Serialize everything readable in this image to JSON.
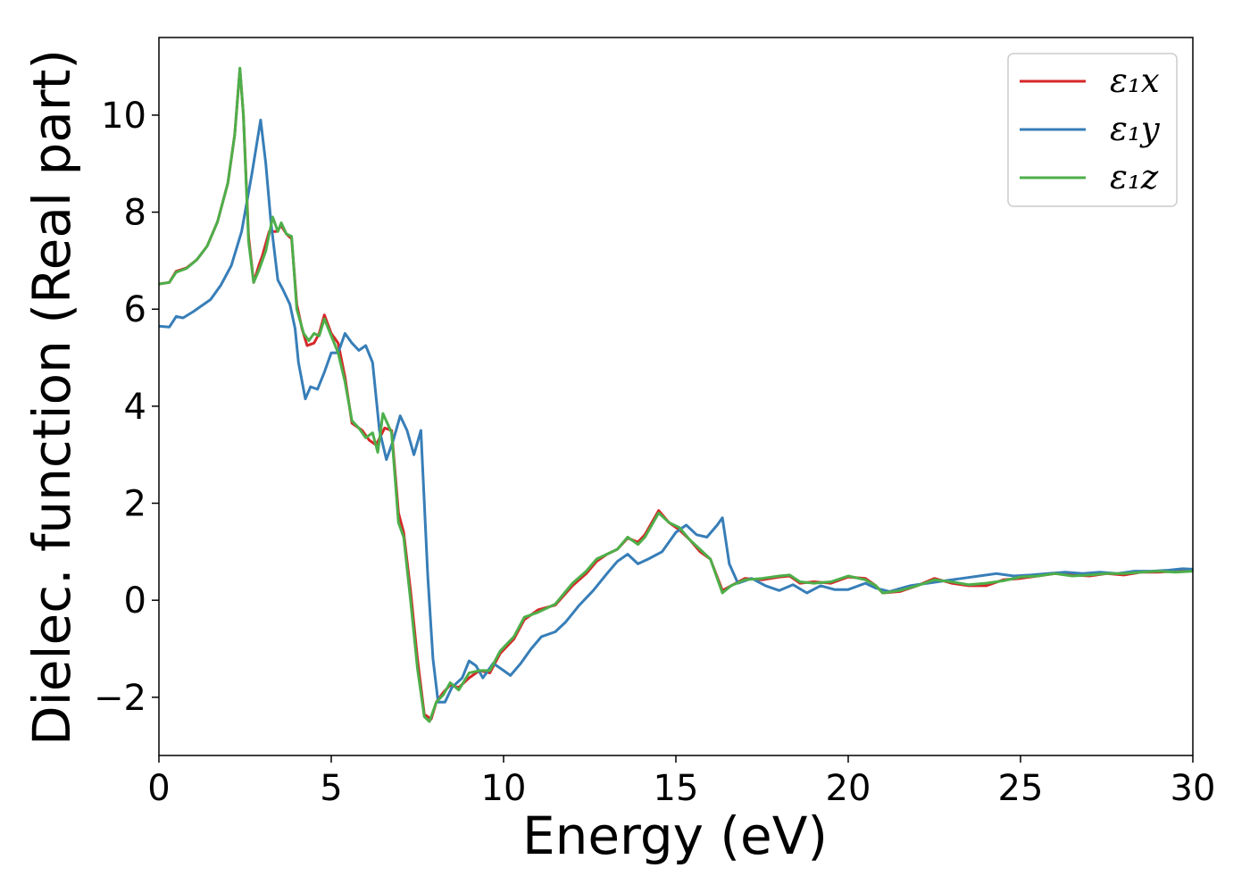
{
  "chart_data": {
    "type": "line",
    "title": "",
    "xlabel": "Energy (eV)",
    "ylabel": "Dielec. function (Real part)",
    "xlim": [
      0,
      30
    ],
    "ylim": [
      -3.2,
      11.6
    ],
    "xticks": [
      0,
      5,
      10,
      15,
      20,
      25,
      30
    ],
    "xtick_labels": [
      "0",
      "5",
      "10",
      "15",
      "20",
      "25",
      "30"
    ],
    "yticks": [
      -2,
      0,
      2,
      4,
      6,
      8,
      10
    ],
    "ytick_labels": [
      "−2",
      "0",
      "2",
      "4",
      "6",
      "8",
      "10"
    ],
    "grid": false,
    "legend_position": "top-right",
    "series": [
      {
        "name": "ε₁x",
        "color": "#d62728",
        "points": [
          [
            0,
            6.52
          ],
          [
            0.3,
            6.55
          ],
          [
            0.5,
            6.78
          ],
          [
            0.8,
            6.85
          ],
          [
            1.1,
            7.02
          ],
          [
            1.4,
            7.3
          ],
          [
            1.7,
            7.8
          ],
          [
            2.0,
            8.6
          ],
          [
            2.2,
            9.6
          ],
          [
            2.35,
            10.95
          ],
          [
            2.45,
            10.0
          ],
          [
            2.6,
            7.5
          ],
          [
            2.75,
            6.55
          ],
          [
            2.9,
            6.9
          ],
          [
            3.0,
            7.1
          ],
          [
            3.2,
            7.6
          ],
          [
            3.4,
            7.6
          ],
          [
            3.55,
            7.72
          ],
          [
            3.7,
            7.55
          ],
          [
            3.85,
            7.45
          ],
          [
            4.0,
            6.1
          ],
          [
            4.15,
            5.6
          ],
          [
            4.3,
            5.25
          ],
          [
            4.5,
            5.3
          ],
          [
            4.65,
            5.5
          ],
          [
            4.8,
            5.88
          ],
          [
            5.0,
            5.5
          ],
          [
            5.2,
            5.3
          ],
          [
            5.4,
            4.6
          ],
          [
            5.6,
            3.65
          ],
          [
            5.9,
            3.5
          ],
          [
            6.1,
            3.3
          ],
          [
            6.3,
            3.2
          ],
          [
            6.55,
            3.55
          ],
          [
            6.75,
            3.5
          ],
          [
            6.95,
            1.8
          ],
          [
            7.1,
            1.4
          ],
          [
            7.3,
            0.2
          ],
          [
            7.5,
            -1.2
          ],
          [
            7.7,
            -2.35
          ],
          [
            7.9,
            -2.45
          ],
          [
            8.05,
            -2.1
          ],
          [
            8.25,
            -1.9
          ],
          [
            8.45,
            -1.75
          ],
          [
            8.7,
            -1.8
          ],
          [
            9.0,
            -1.6
          ],
          [
            9.3,
            -1.45
          ],
          [
            9.6,
            -1.5
          ],
          [
            9.9,
            -1.1
          ],
          [
            10.3,
            -0.8
          ],
          [
            10.6,
            -0.4
          ],
          [
            11.0,
            -0.2
          ],
          [
            11.5,
            -0.1
          ],
          [
            12.0,
            0.3
          ],
          [
            12.4,
            0.55
          ],
          [
            12.7,
            0.8
          ],
          [
            13.0,
            0.95
          ],
          [
            13.3,
            1.05
          ],
          [
            13.6,
            1.28
          ],
          [
            13.9,
            1.2
          ],
          [
            14.1,
            1.35
          ],
          [
            14.5,
            1.85
          ],
          [
            14.8,
            1.6
          ],
          [
            15.1,
            1.45
          ],
          [
            15.4,
            1.25
          ],
          [
            15.7,
            1.0
          ],
          [
            16.0,
            0.85
          ],
          [
            16.35,
            0.2
          ],
          [
            16.6,
            0.3
          ],
          [
            17.0,
            0.45
          ],
          [
            17.5,
            0.42
          ],
          [
            18.0,
            0.48
          ],
          [
            18.3,
            0.5
          ],
          [
            18.6,
            0.35
          ],
          [
            19.0,
            0.38
          ],
          [
            19.5,
            0.35
          ],
          [
            20.0,
            0.48
          ],
          [
            20.5,
            0.45
          ],
          [
            20.8,
            0.3
          ],
          [
            21.0,
            0.15
          ],
          [
            21.5,
            0.18
          ],
          [
            22.0,
            0.3
          ],
          [
            22.5,
            0.45
          ],
          [
            23.0,
            0.35
          ],
          [
            23.5,
            0.3
          ],
          [
            24.0,
            0.3
          ],
          [
            24.5,
            0.42
          ],
          [
            25.0,
            0.45
          ],
          [
            25.5,
            0.5
          ],
          [
            26.0,
            0.55
          ],
          [
            26.5,
            0.52
          ],
          [
            27.0,
            0.5
          ],
          [
            27.5,
            0.55
          ],
          [
            28.0,
            0.52
          ],
          [
            28.5,
            0.58
          ],
          [
            29.0,
            0.58
          ],
          [
            29.5,
            0.6
          ],
          [
            30.0,
            0.62
          ]
        ]
      },
      {
        "name": "ε₁y",
        "color": "#377eb8",
        "points": [
          [
            0,
            5.65
          ],
          [
            0.3,
            5.63
          ],
          [
            0.5,
            5.85
          ],
          [
            0.7,
            5.82
          ],
          [
            1.0,
            5.95
          ],
          [
            1.5,
            6.2
          ],
          [
            1.8,
            6.5
          ],
          [
            2.1,
            6.9
          ],
          [
            2.4,
            7.6
          ],
          [
            2.7,
            8.8
          ],
          [
            2.95,
            9.9
          ],
          [
            3.1,
            9.0
          ],
          [
            3.25,
            7.8
          ],
          [
            3.45,
            6.6
          ],
          [
            3.6,
            6.4
          ],
          [
            3.8,
            6.1
          ],
          [
            3.95,
            5.6
          ],
          [
            4.05,
            4.9
          ],
          [
            4.25,
            4.15
          ],
          [
            4.4,
            4.4
          ],
          [
            4.6,
            4.35
          ],
          [
            4.8,
            4.7
          ],
          [
            5.0,
            5.1
          ],
          [
            5.2,
            5.1
          ],
          [
            5.4,
            5.5
          ],
          [
            5.6,
            5.3
          ],
          [
            5.8,
            5.15
          ],
          [
            6.0,
            5.25
          ],
          [
            6.2,
            4.9
          ],
          [
            6.4,
            3.5
          ],
          [
            6.6,
            2.9
          ],
          [
            6.8,
            3.3
          ],
          [
            7.0,
            3.8
          ],
          [
            7.2,
            3.5
          ],
          [
            7.4,
            3.0
          ],
          [
            7.6,
            3.5
          ],
          [
            7.8,
            0.5
          ],
          [
            7.95,
            -1.2
          ],
          [
            8.1,
            -2.1
          ],
          [
            8.3,
            -2.1
          ],
          [
            8.5,
            -1.8
          ],
          [
            8.8,
            -1.6
          ],
          [
            9.0,
            -1.25
          ],
          [
            9.2,
            -1.35
          ],
          [
            9.4,
            -1.6
          ],
          [
            9.7,
            -1.3
          ],
          [
            10.0,
            -1.45
          ],
          [
            10.2,
            -1.55
          ],
          [
            10.5,
            -1.3
          ],
          [
            10.8,
            -1.0
          ],
          [
            11.1,
            -0.75
          ],
          [
            11.5,
            -0.65
          ],
          [
            11.8,
            -0.45
          ],
          [
            12.2,
            -0.1
          ],
          [
            12.6,
            0.2
          ],
          [
            13.0,
            0.55
          ],
          [
            13.3,
            0.8
          ],
          [
            13.6,
            0.95
          ],
          [
            13.9,
            0.75
          ],
          [
            14.2,
            0.85
          ],
          [
            14.6,
            1.0
          ],
          [
            15.0,
            1.4
          ],
          [
            15.3,
            1.55
          ],
          [
            15.6,
            1.35
          ],
          [
            15.9,
            1.3
          ],
          [
            16.2,
            1.55
          ],
          [
            16.35,
            1.7
          ],
          [
            16.55,
            0.75
          ],
          [
            16.8,
            0.35
          ],
          [
            17.2,
            0.45
          ],
          [
            17.6,
            0.3
          ],
          [
            18.0,
            0.2
          ],
          [
            18.4,
            0.32
          ],
          [
            18.8,
            0.15
          ],
          [
            19.2,
            0.3
          ],
          [
            19.6,
            0.22
          ],
          [
            20.0,
            0.22
          ],
          [
            20.5,
            0.35
          ],
          [
            20.8,
            0.25
          ],
          [
            21.2,
            0.18
          ],
          [
            21.8,
            0.3
          ],
          [
            22.3,
            0.35
          ],
          [
            22.8,
            0.4
          ],
          [
            23.3,
            0.45
          ],
          [
            23.8,
            0.5
          ],
          [
            24.3,
            0.55
          ],
          [
            24.8,
            0.5
          ],
          [
            25.3,
            0.52
          ],
          [
            25.8,
            0.55
          ],
          [
            26.3,
            0.58
          ],
          [
            26.8,
            0.55
          ],
          [
            27.3,
            0.58
          ],
          [
            27.8,
            0.55
          ],
          [
            28.3,
            0.6
          ],
          [
            28.8,
            0.6
          ],
          [
            29.3,
            0.62
          ],
          [
            29.7,
            0.65
          ],
          [
            30.0,
            0.64
          ]
        ]
      },
      {
        "name": "ε₁z",
        "color": "#4daf4a",
        "points": [
          [
            0,
            6.52
          ],
          [
            0.3,
            6.55
          ],
          [
            0.5,
            6.76
          ],
          [
            0.8,
            6.84
          ],
          [
            1.1,
            7.02
          ],
          [
            1.4,
            7.3
          ],
          [
            1.7,
            7.8
          ],
          [
            2.0,
            8.6
          ],
          [
            2.2,
            9.6
          ],
          [
            2.35,
            10.97
          ],
          [
            2.45,
            10.0
          ],
          [
            2.6,
            7.4
          ],
          [
            2.75,
            6.55
          ],
          [
            2.9,
            6.8
          ],
          [
            3.1,
            7.2
          ],
          [
            3.3,
            7.9
          ],
          [
            3.45,
            7.6
          ],
          [
            3.55,
            7.78
          ],
          [
            3.7,
            7.55
          ],
          [
            3.85,
            7.5
          ],
          [
            4.0,
            6.0
          ],
          [
            4.2,
            5.5
          ],
          [
            4.35,
            5.35
          ],
          [
            4.5,
            5.5
          ],
          [
            4.65,
            5.45
          ],
          [
            4.8,
            5.8
          ],
          [
            5.0,
            5.45
          ],
          [
            5.2,
            5.1
          ],
          [
            5.4,
            4.5
          ],
          [
            5.6,
            3.7
          ],
          [
            5.8,
            3.55
          ],
          [
            6.0,
            3.35
          ],
          [
            6.2,
            3.45
          ],
          [
            6.35,
            3.05
          ],
          [
            6.5,
            3.85
          ],
          [
            6.75,
            3.45
          ],
          [
            6.95,
            1.6
          ],
          [
            7.1,
            1.3
          ],
          [
            7.3,
            0.0
          ],
          [
            7.5,
            -1.4
          ],
          [
            7.7,
            -2.4
          ],
          [
            7.85,
            -2.5
          ],
          [
            8.05,
            -2.1
          ],
          [
            8.25,
            -1.95
          ],
          [
            8.45,
            -1.7
          ],
          [
            8.7,
            -1.85
          ],
          [
            9.0,
            -1.5
          ],
          [
            9.3,
            -1.45
          ],
          [
            9.6,
            -1.45
          ],
          [
            9.9,
            -1.05
          ],
          [
            10.3,
            -0.75
          ],
          [
            10.6,
            -0.35
          ],
          [
            11.0,
            -0.25
          ],
          [
            11.5,
            -0.08
          ],
          [
            12.0,
            0.35
          ],
          [
            12.4,
            0.6
          ],
          [
            12.7,
            0.85
          ],
          [
            13.0,
            0.95
          ],
          [
            13.3,
            1.05
          ],
          [
            13.6,
            1.3
          ],
          [
            13.9,
            1.15
          ],
          [
            14.1,
            1.3
          ],
          [
            14.5,
            1.8
          ],
          [
            14.8,
            1.6
          ],
          [
            15.1,
            1.5
          ],
          [
            15.4,
            1.25
          ],
          [
            15.7,
            1.05
          ],
          [
            16.0,
            0.85
          ],
          [
            16.35,
            0.15
          ],
          [
            16.6,
            0.3
          ],
          [
            17.0,
            0.42
          ],
          [
            17.5,
            0.45
          ],
          [
            18.0,
            0.5
          ],
          [
            18.3,
            0.52
          ],
          [
            18.6,
            0.38
          ],
          [
            19.0,
            0.35
          ],
          [
            19.5,
            0.38
          ],
          [
            20.0,
            0.5
          ],
          [
            20.5,
            0.42
          ],
          [
            20.8,
            0.3
          ],
          [
            21.0,
            0.15
          ],
          [
            21.5,
            0.2
          ],
          [
            22.0,
            0.3
          ],
          [
            22.5,
            0.42
          ],
          [
            23.0,
            0.38
          ],
          [
            23.5,
            0.32
          ],
          [
            24.0,
            0.35
          ],
          [
            24.5,
            0.4
          ],
          [
            25.0,
            0.48
          ],
          [
            25.5,
            0.5
          ],
          [
            26.0,
            0.55
          ],
          [
            26.5,
            0.5
          ],
          [
            27.0,
            0.52
          ],
          [
            27.5,
            0.55
          ],
          [
            28.0,
            0.55
          ],
          [
            28.5,
            0.58
          ],
          [
            29.0,
            0.6
          ],
          [
            29.5,
            0.58
          ],
          [
            30.0,
            0.6
          ]
        ]
      }
    ]
  }
}
